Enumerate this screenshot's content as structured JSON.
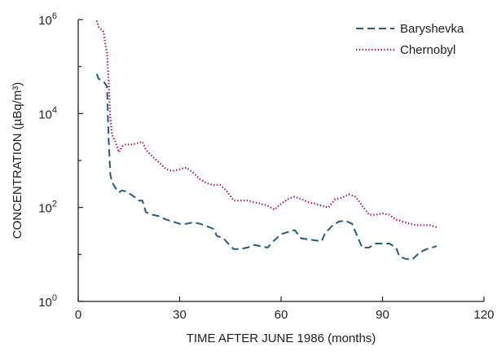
{
  "chart_data": {
    "type": "line",
    "xlabel": "TIME AFTER JUNE 1986 (months)",
    "ylabel": "CONCENTRATION (µBq/m³)",
    "xlim": [
      0,
      120
    ],
    "xticks": [
      "0",
      "30",
      "60",
      "90",
      "120"
    ],
    "yscale": "log",
    "ylim": [
      1,
      1000000
    ],
    "yticks": [
      {
        "base": "10",
        "exp": "0"
      },
      {
        "base": "10",
        "exp": "2"
      },
      {
        "base": "10",
        "exp": "4"
      },
      {
        "base": "10",
        "exp": "6"
      }
    ],
    "grid": false,
    "legend_position": "top-right",
    "series": [
      {
        "name": "Baryshevka",
        "style": "dashed",
        "color": "#1f5c8c",
        "points": [
          [
            5.5,
            70000
          ],
          [
            6,
            55000
          ],
          [
            7.5,
            48000
          ],
          [
            8.5,
            38000
          ],
          [
            9,
            3000
          ],
          [
            9.5,
            500
          ],
          [
            10,
            350
          ],
          [
            11,
            260
          ],
          [
            12,
            210
          ],
          [
            13,
            230
          ],
          [
            14,
            220
          ],
          [
            15,
            200
          ],
          [
            16,
            180
          ],
          [
            17,
            160
          ],
          [
            18,
            140
          ],
          [
            19,
            140
          ],
          [
            20,
            80
          ],
          [
            22,
            70
          ],
          [
            24,
            65
          ],
          [
            26,
            55
          ],
          [
            28,
            50
          ],
          [
            30,
            45
          ],
          [
            32,
            45
          ],
          [
            34,
            48
          ],
          [
            36,
            45
          ],
          [
            38,
            40
          ],
          [
            40,
            35
          ],
          [
            41,
            25
          ],
          [
            43,
            22
          ],
          [
            45,
            15
          ],
          [
            46,
            13
          ],
          [
            48,
            13
          ],
          [
            50,
            14
          ],
          [
            52,
            16
          ],
          [
            54,
            15
          ],
          [
            56,
            14
          ],
          [
            58,
            20
          ],
          [
            60,
            27
          ],
          [
            62,
            30
          ],
          [
            64,
            33
          ],
          [
            66,
            22
          ],
          [
            68,
            21
          ],
          [
            70,
            20
          ],
          [
            72,
            19
          ],
          [
            73,
            28
          ],
          [
            75,
            40
          ],
          [
            77,
            50
          ],
          [
            79,
            52
          ],
          [
            81,
            45
          ],
          [
            82,
            30
          ],
          [
            84,
            14
          ],
          [
            86,
            14
          ],
          [
            88,
            17
          ],
          [
            90,
            17
          ],
          [
            92,
            17
          ],
          [
            94,
            14
          ],
          [
            95,
            9
          ],
          [
            97,
            8
          ],
          [
            99,
            8
          ],
          [
            101,
            11
          ],
          [
            103,
            13
          ],
          [
            106,
            15
          ]
        ]
      },
      {
        "name": "Chernobyl",
        "style": "dotted",
        "color": "#b0106c",
        "points": [
          [
            5.5,
            950000
          ],
          [
            6,
            700000
          ],
          [
            7,
            600000
          ],
          [
            7.5,
            550000
          ],
          [
            8,
            300000
          ],
          [
            8.5,
            200000
          ],
          [
            9,
            50000
          ],
          [
            9.5,
            8000
          ],
          [
            10,
            3500
          ],
          [
            11,
            2500
          ],
          [
            12,
            1500
          ],
          [
            13,
            2000
          ],
          [
            14,
            2200
          ],
          [
            16,
            2200
          ],
          [
            18,
            2400
          ],
          [
            19,
            2500
          ],
          [
            20,
            1700
          ],
          [
            22,
            1200
          ],
          [
            24,
            900
          ],
          [
            26,
            650
          ],
          [
            28,
            600
          ],
          [
            30,
            650
          ],
          [
            32,
            700
          ],
          [
            34,
            550
          ],
          [
            36,
            400
          ],
          [
            38,
            330
          ],
          [
            40,
            300
          ],
          [
            42,
            300
          ],
          [
            44,
            220
          ],
          [
            46,
            140
          ],
          [
            48,
            140
          ],
          [
            50,
            140
          ],
          [
            52,
            130
          ],
          [
            54,
            120
          ],
          [
            56,
            110
          ],
          [
            58,
            90
          ],
          [
            60,
            120
          ],
          [
            62,
            150
          ],
          [
            64,
            170
          ],
          [
            66,
            150
          ],
          [
            68,
            130
          ],
          [
            70,
            120
          ],
          [
            72,
            110
          ],
          [
            74,
            100
          ],
          [
            76,
            150
          ],
          [
            78,
            160
          ],
          [
            80,
            190
          ],
          [
            82,
            170
          ],
          [
            84,
            110
          ],
          [
            86,
            70
          ],
          [
            88,
            70
          ],
          [
            90,
            75
          ],
          [
            92,
            70
          ],
          [
            94,
            55
          ],
          [
            96,
            50
          ],
          [
            98,
            45
          ],
          [
            100,
            42
          ],
          [
            102,
            42
          ],
          [
            104,
            42
          ],
          [
            106,
            38
          ]
        ]
      }
    ]
  }
}
